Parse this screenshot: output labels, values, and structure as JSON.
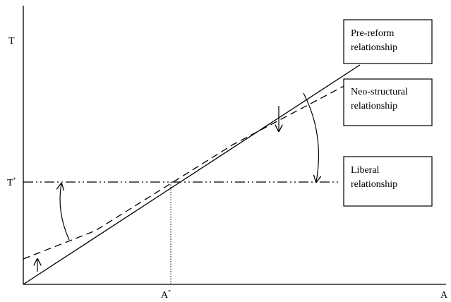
{
  "axes": {
    "y_label": "T",
    "x_label": "A",
    "y_marker": {
      "base": "T",
      "sup": "*"
    },
    "x_marker": {
      "base": "A",
      "sup": "*"
    }
  },
  "boxes": [
    {
      "lines": [
        "Pre-reform",
        "relationship"
      ]
    },
    {
      "lines": [
        "Neo-structural",
        "relationship"
      ]
    },
    {
      "lines": [
        "Liberal",
        "relationship"
      ]
    }
  ]
}
